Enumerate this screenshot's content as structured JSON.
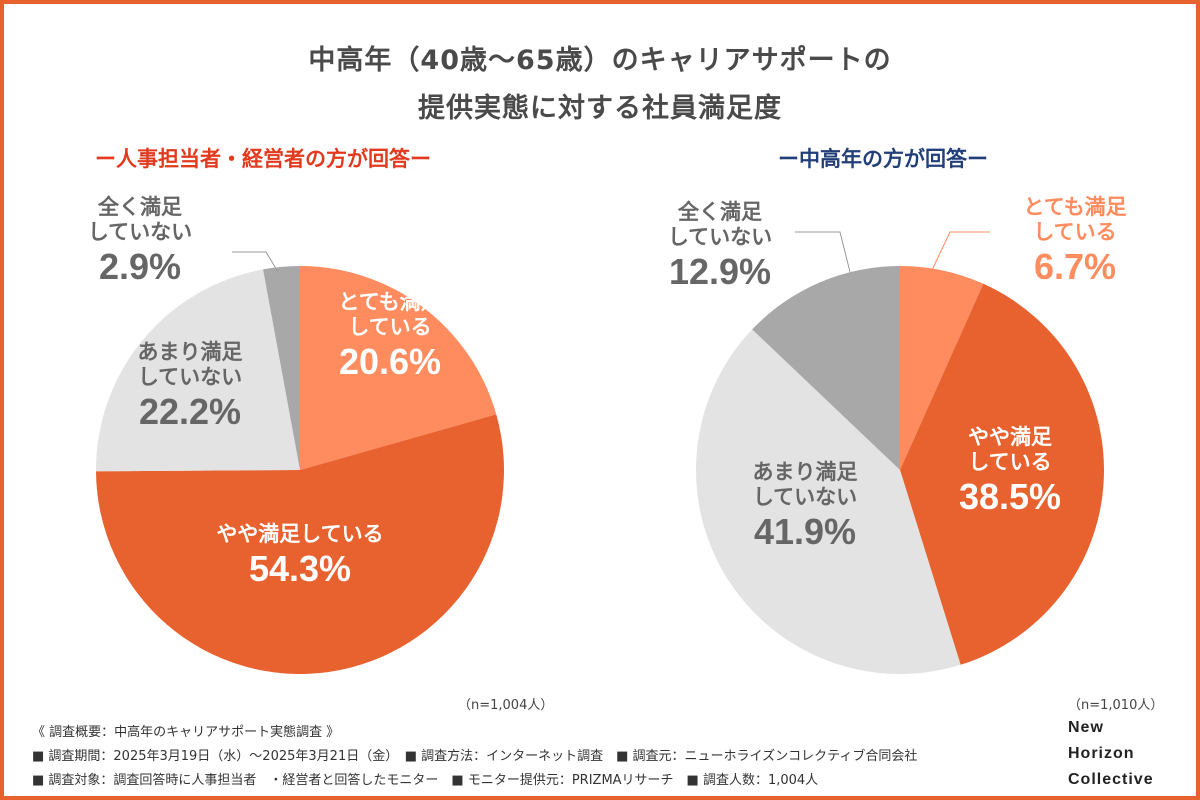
{
  "title": {
    "line1": "中高年（40歳〜65歳）のキャリアサポートの",
    "line2": "提供実態に対する社員満足度"
  },
  "colors": {
    "border": "#E8622F",
    "very_satisfied": "#FF8C5F",
    "somewhat_satisfied": "#E8622F",
    "not_very_satisfied": "#E3E3E3",
    "not_at_all_satisfied": "#A8A8A8",
    "subtitle_left": "#E23A1E",
    "subtitle_right": "#233F7A"
  },
  "chart_data": [
    {
      "type": "pie",
      "title": "ー人事担当者・経営者の方が回答ー",
      "n_label": "（n=1,004人）",
      "slices": [
        {
          "label": "とても満足している",
          "label_lines": [
            "とても満足",
            "している"
          ],
          "value": 20.6,
          "display": "20.6%"
        },
        {
          "label": "やや満足している",
          "label_lines": [
            "やや満足している"
          ],
          "value": 54.3,
          "display": "54.3%"
        },
        {
          "label": "あまり満足していない",
          "label_lines": [
            "あまり満足",
            "していない"
          ],
          "value": 22.2,
          "display": "22.2%"
        },
        {
          "label": "全く満足していない",
          "label_lines": [
            "全く満足",
            "していない"
          ],
          "value": 2.9,
          "display": "2.9%"
        }
      ]
    },
    {
      "type": "pie",
      "title": "ー中高年の方が回答ー",
      "n_label": "（n=1,010人）",
      "slices": [
        {
          "label": "とても満足している",
          "label_lines": [
            "とても満足",
            "している"
          ],
          "value": 6.7,
          "display": "6.7%"
        },
        {
          "label": "やや満足している",
          "label_lines": [
            "やや満足",
            "している"
          ],
          "value": 38.5,
          "display": "38.5%"
        },
        {
          "label": "あまり満足していない",
          "label_lines": [
            "あまり満足",
            "していない"
          ],
          "value": 41.9,
          "display": "41.9%"
        },
        {
          "label": "全く満足していない",
          "label_lines": [
            "全く満足",
            "していない"
          ],
          "value": 12.9,
          "display": "12.9%"
        }
      ]
    }
  ],
  "footer": {
    "summary": "《 調査概要：中高年のキャリアサポート実態調査 》",
    "line2": "■ 調査期間：2025年3月19日（水）〜2025年3月21日（金）　■ 調査方法：インターネット調査　■ 調査元：ニューホライズンコレクティブ合同会社",
    "line3": "■ 調査対象：調査回答時に人事担当者　・経営者と回答したモニター　■ モニター提供元：PRIZMAリサーチ　■ 調査人数：1,004人"
  },
  "brand": {
    "line1": "New",
    "line2": "Horizon",
    "line3": "Collective"
  }
}
